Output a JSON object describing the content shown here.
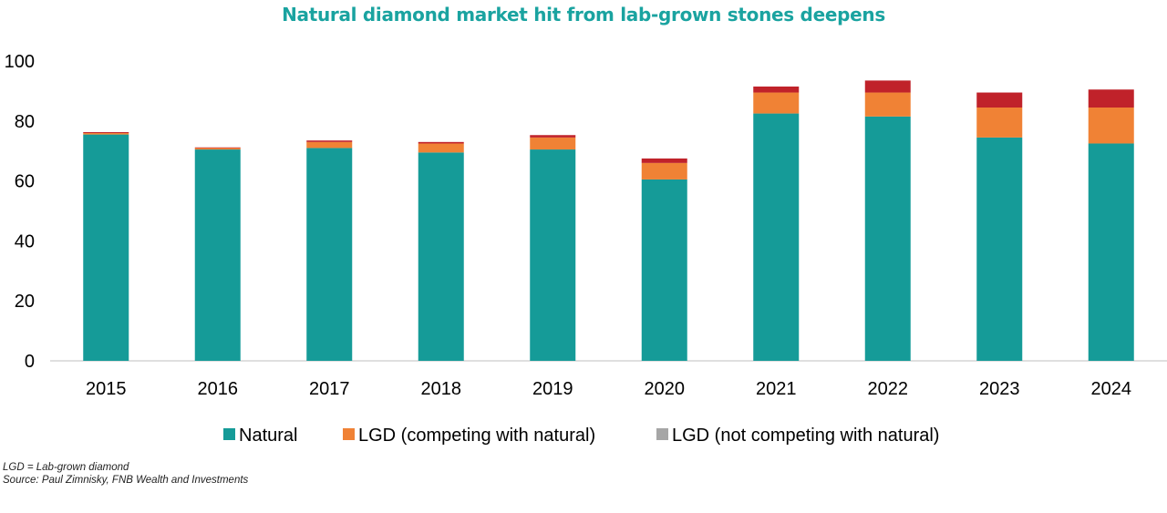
{
  "chart_data": {
    "type": "bar",
    "stacked": true,
    "title": "Natural diamond market hit from lab-grown stones deepens",
    "xlabel": "",
    "ylabel": "",
    "categories": [
      "2015",
      "2016",
      "2017",
      "2018",
      "2019",
      "2020",
      "2021",
      "2022",
      "2023",
      "2024"
    ],
    "ylim": [
      0,
      100
    ],
    "yticks": [
      "0",
      "20",
      "40",
      "60",
      "80",
      "100"
    ],
    "grid": false,
    "legend_position": "bottom",
    "series": [
      {
        "name": "Natural",
        "color": "#159b98",
        "values": [
          75.5,
          70.5,
          71,
          69.5,
          70.5,
          60.5,
          82.5,
          81.5,
          74.5,
          72.5
        ]
      },
      {
        "name": "LGD (competing with natural)",
        "color": "#f08235",
        "values": [
          0.5,
          0.5,
          2,
          3,
          4,
          5.5,
          7,
          8,
          10,
          12
        ]
      },
      {
        "name": "LGD (not competing with natural)",
        "color": "#c0222a",
        "legend_color": "#a6a6a6",
        "values": [
          0.3,
          0.2,
          0.5,
          0.5,
          0.8,
          1.5,
          2,
          4,
          5,
          6
        ]
      }
    ]
  },
  "footnotes": {
    "definition": "LGD = Lab-grown diamond",
    "source": "Source: Paul Zimnisky, FNB Wealth and Investments"
  }
}
